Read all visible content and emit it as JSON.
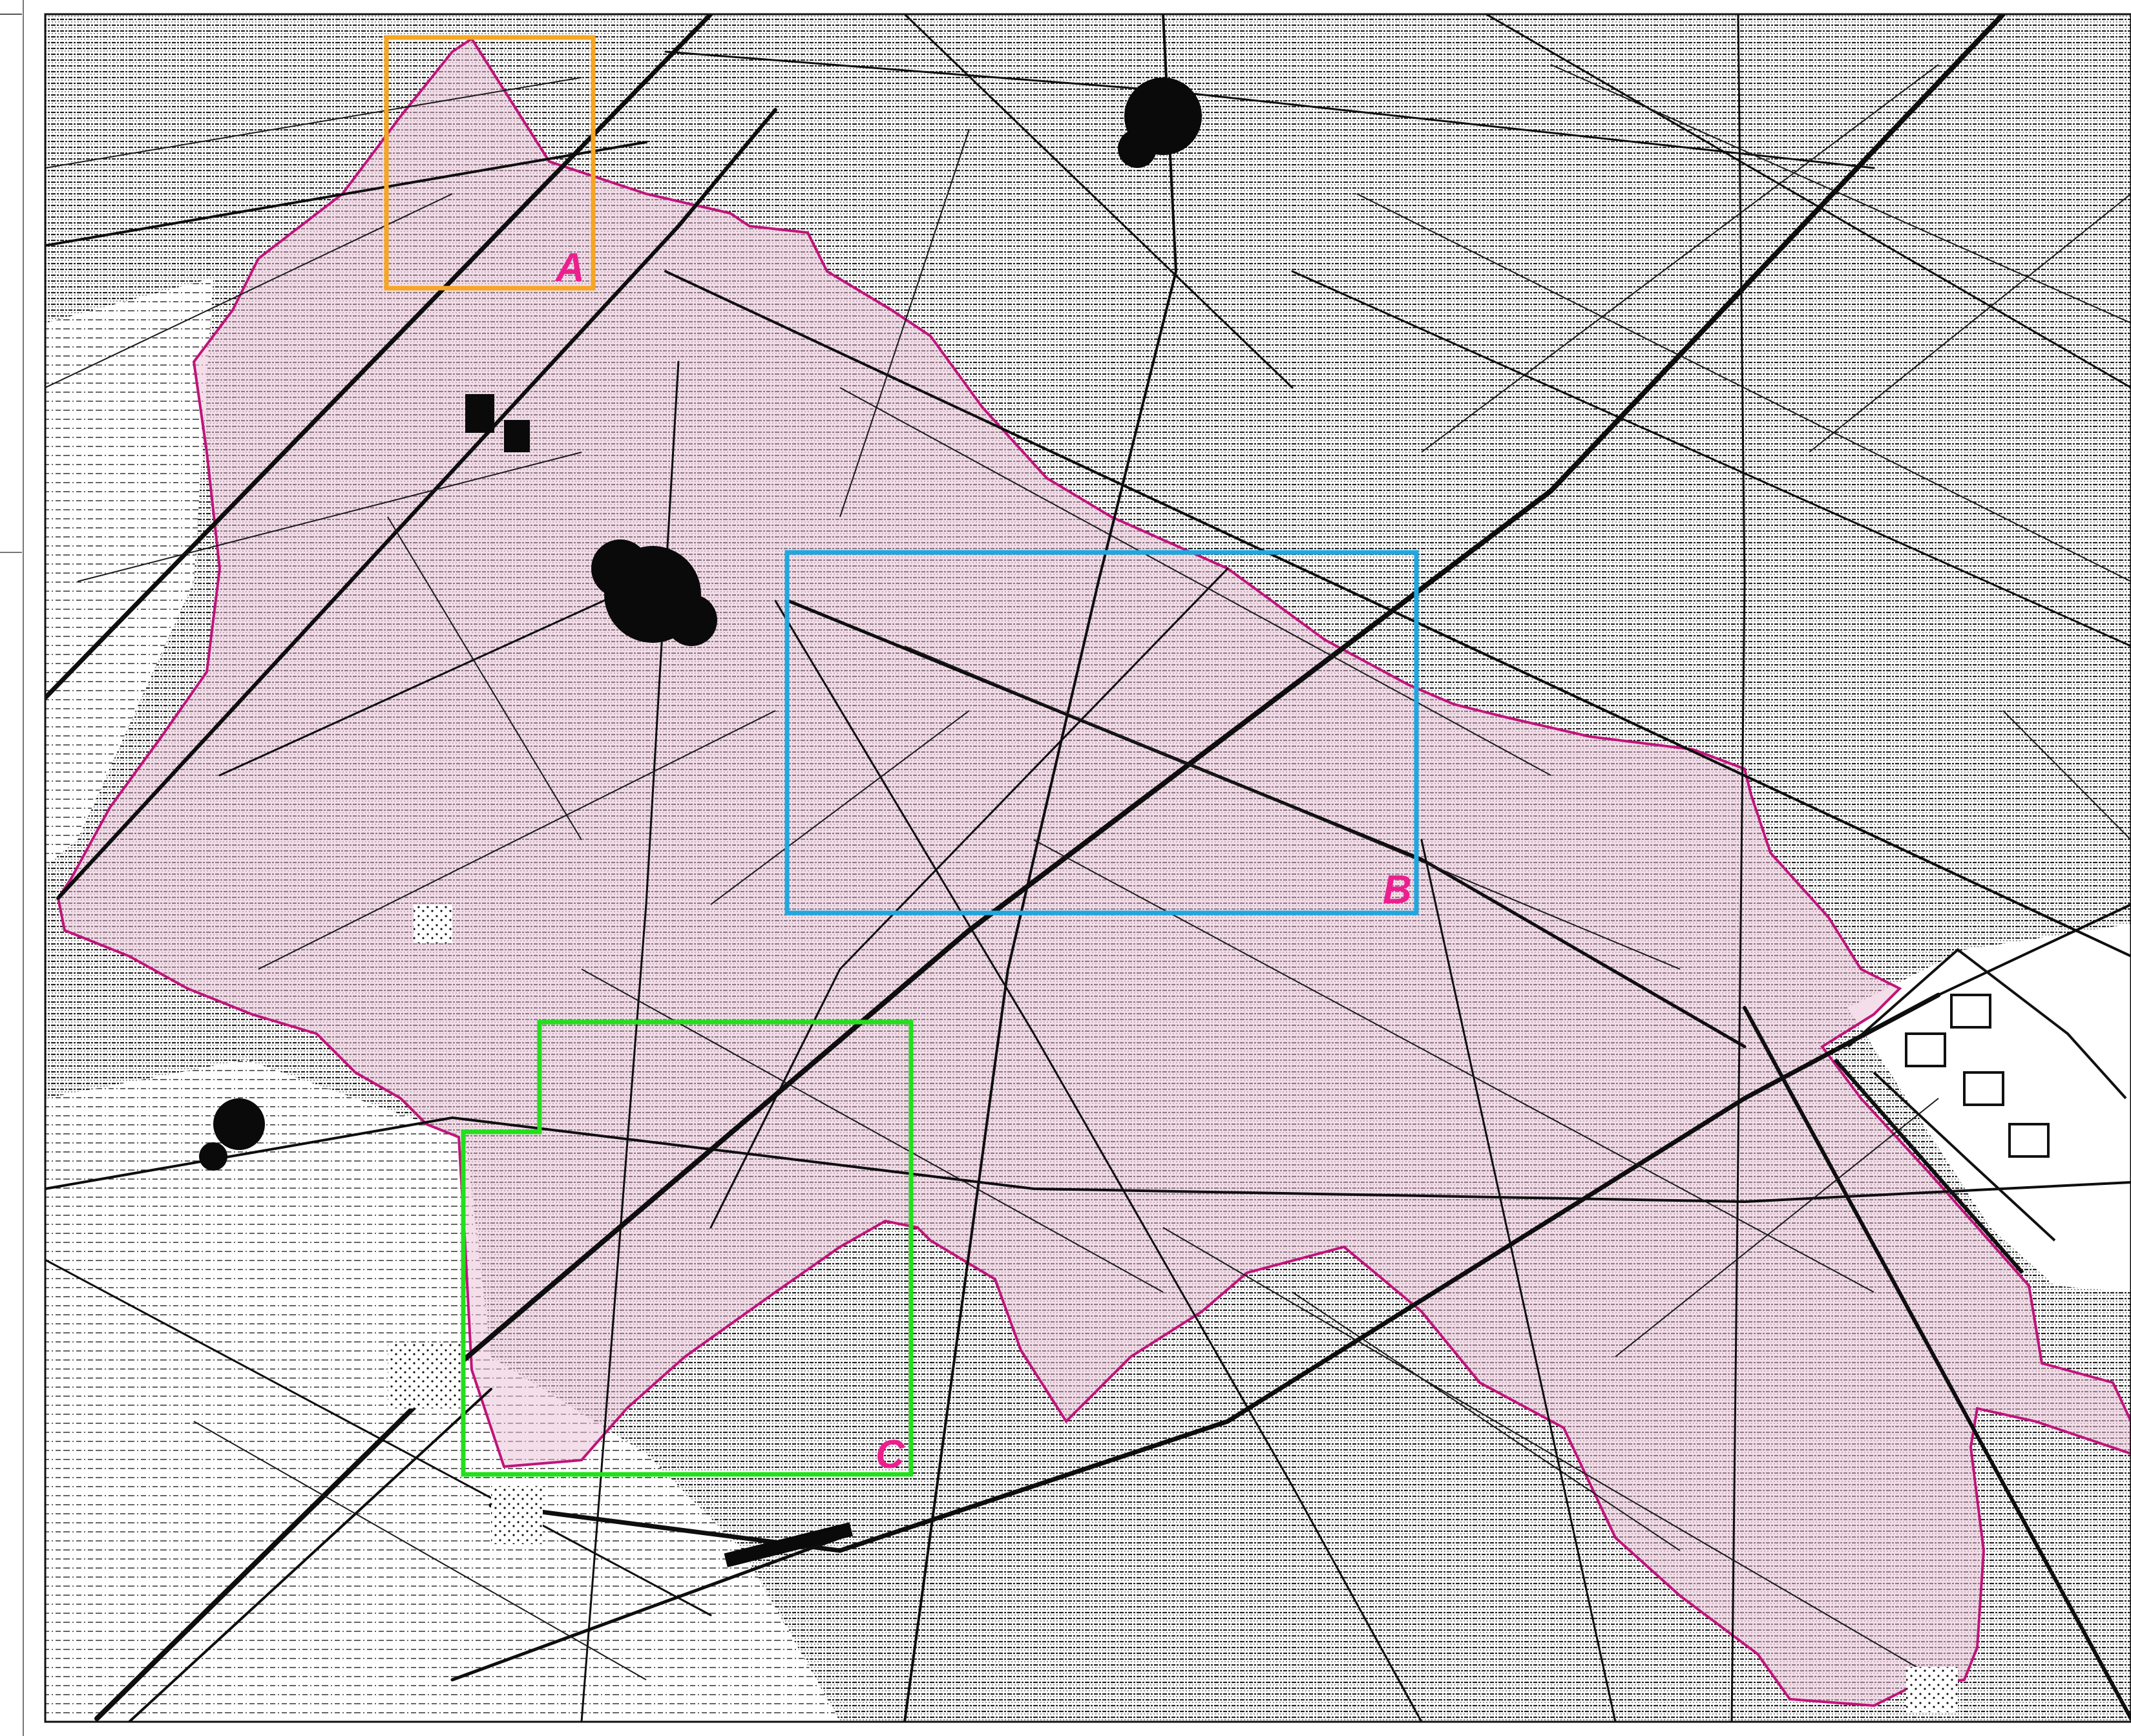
{
  "map": {
    "boundary_color": "#c0147a",
    "boundary_fill": "#f3d6e6",
    "base_ink": "#111111",
    "paper": "#ffffff"
  },
  "regions": [
    {
      "id": "A",
      "label": "A",
      "color": "#f5a623",
      "label_color": "#ec1f8e"
    },
    {
      "id": "B",
      "label": "B",
      "color": "#1fa8e0",
      "label_color": "#ec1f8e"
    },
    {
      "id": "C",
      "label": "C",
      "color": "#22e01c",
      "label_color": "#ec1f8e"
    }
  ]
}
